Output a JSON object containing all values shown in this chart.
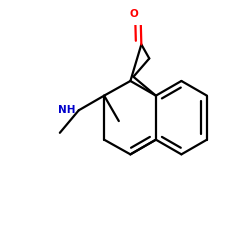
{
  "bg": "#ffffff",
  "bond_color": "#000000",
  "o_color": "#ff0000",
  "n_color": "#0000cc",
  "lw": 1.6,
  "xlim": [
    -1.0,
    2.2
  ],
  "ylim": [
    -1.3,
    1.3
  ],
  "BL": 0.38
}
